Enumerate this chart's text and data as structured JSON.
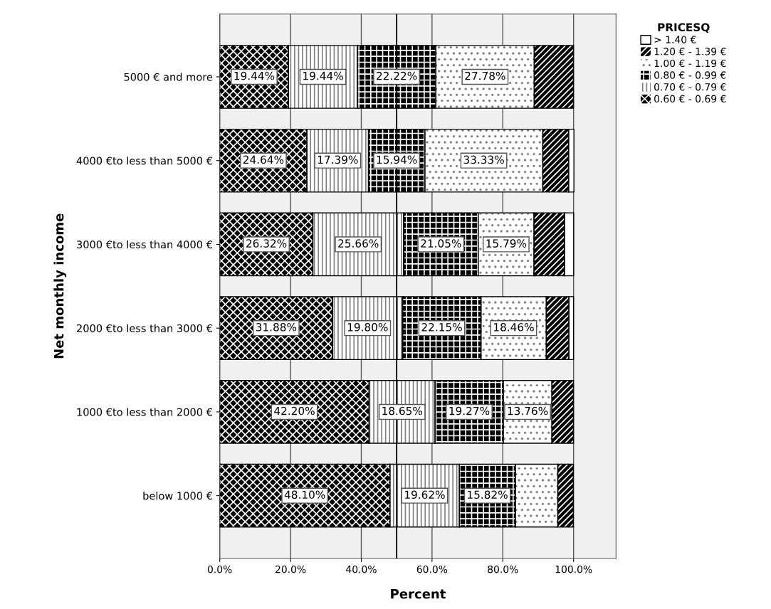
{
  "chart_data": {
    "type": "bar",
    "orientation": "horizontal",
    "stacked": true,
    "xlabel": "Percent",
    "ylabel": "Net monthly income",
    "legend_title": "PRICESQ",
    "legend": "top right",
    "grid": "x",
    "categories": [
      "5000 € and more",
      "4000 €to less than 5000 €",
      "3000 €to less than 4000 €",
      "2000 €to less than 3000 €",
      "1000 €to less than 2000 €",
      "below 1000 €"
    ],
    "xlim": [
      0,
      112
    ],
    "xticks": [
      {
        "value": 0,
        "label": "0.0%"
      },
      {
        "value": 20,
        "label": "20.0%"
      },
      {
        "value": 40,
        "label": "40.0%"
      },
      {
        "value": 60,
        "label": "60.0%"
      },
      {
        "value": 80,
        "label": "80.0%"
      },
      {
        "value": 100,
        "label": "100.0%"
      }
    ],
    "ref_lines": [
      {
        "axis": "x",
        "value": 50,
        "color": "#000000"
      }
    ],
    "series": [
      {
        "name": "0.60 € - 0.69 €",
        "color": "#000000",
        "values": [
          19.44,
          24.64,
          26.32,
          31.88,
          42.2,
          48.1
        ],
        "value_labels": [
          "19.44%",
          "24.64%",
          "26.32%",
          "31.88%",
          "42.20%",
          "48.10%"
        ]
      },
      {
        "name": "0.70 € - 0.79 €",
        "color": "#ffffff",
        "values": [
          19.44,
          17.39,
          25.66,
          19.8,
          18.65,
          19.62
        ],
        "value_labels": [
          "19.44%",
          "17.39%",
          "25.66%",
          "19.80%",
          "18.65%",
          "19.62%"
        ]
      },
      {
        "name": "0.80 € - 0.99 €",
        "color": "#000000",
        "values": [
          22.22,
          15.94,
          21.05,
          22.15,
          19.27,
          15.82
        ],
        "value_labels": [
          "22.22%",
          "15.94%",
          "21.05%",
          "22.15%",
          "19.27%",
          "15.82%"
        ]
      },
      {
        "name": "1.00 € - 1.19 €",
        "color": "#ffffff",
        "values": [
          27.78,
          33.33,
          15.79,
          18.46,
          13.76,
          12.0
        ],
        "value_labels": [
          "27.78%",
          "33.33%",
          "15.79%",
          "18.46%",
          "13.76%",
          null
        ]
      },
      {
        "name": "1.20 € - 1.39 €",
        "color": "#000000",
        "values": [
          11.1,
          7.3,
          8.6,
          6.4,
          6.1,
          4.4
        ],
        "value_labels": [
          null,
          null,
          null,
          null,
          null,
          null
        ]
      },
      {
        "name": "> 1.40 €",
        "color": "#ffffff",
        "values": [
          0,
          1.5,
          2.6,
          1.3,
          0,
          0
        ],
        "value_labels": [
          null,
          null,
          null,
          null,
          null,
          null
        ]
      }
    ]
  }
}
